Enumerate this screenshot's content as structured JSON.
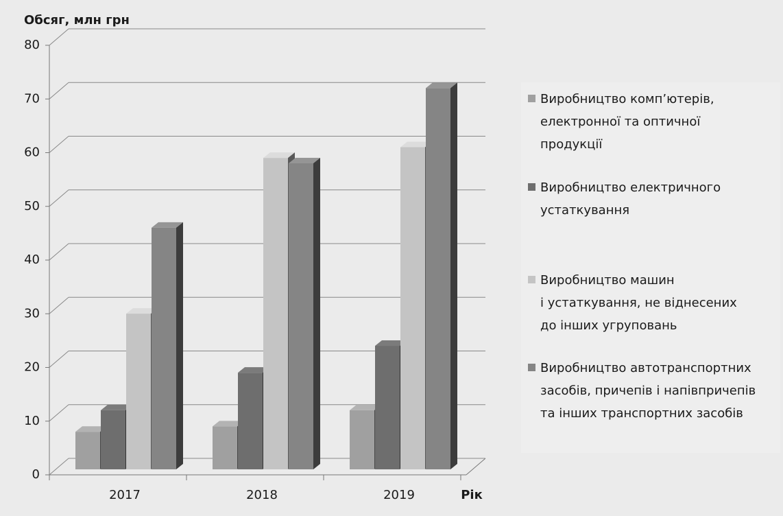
{
  "chart_data": {
    "type": "bar3d",
    "y_axis_label": "Обсяг, млн грн",
    "x_axis_label": "Рік",
    "categories": [
      "2017",
      "2018",
      "2019"
    ],
    "series": [
      {
        "name": "Виробництво комп’ютерів,\nелектронної та оптичної\nпродукції",
        "color": "#a0a0a0",
        "values": [
          7,
          8,
          11
        ]
      },
      {
        "name": "Виробництво електричного\nустаткування",
        "color": "#6e6e6e",
        "values": [
          11,
          18,
          23
        ]
      },
      {
        "name": "Виробництво машин\nі устаткування, не віднесених\nдо інших угруповань",
        "color": "#c4c4c4",
        "values": [
          29,
          58,
          60
        ]
      },
      {
        "name": "Виробництво автотранспортних\nзасобів, причепів і напівпричепів\nта інших транспортних засобів",
        "color": "#858585",
        "values": [
          45,
          57,
          71
        ]
      }
    ],
    "ylim": [
      0,
      80
    ],
    "yticks": [
      0,
      10,
      20,
      30,
      40,
      50,
      60,
      70,
      80
    ],
    "grid": true,
    "legend": "right"
  }
}
